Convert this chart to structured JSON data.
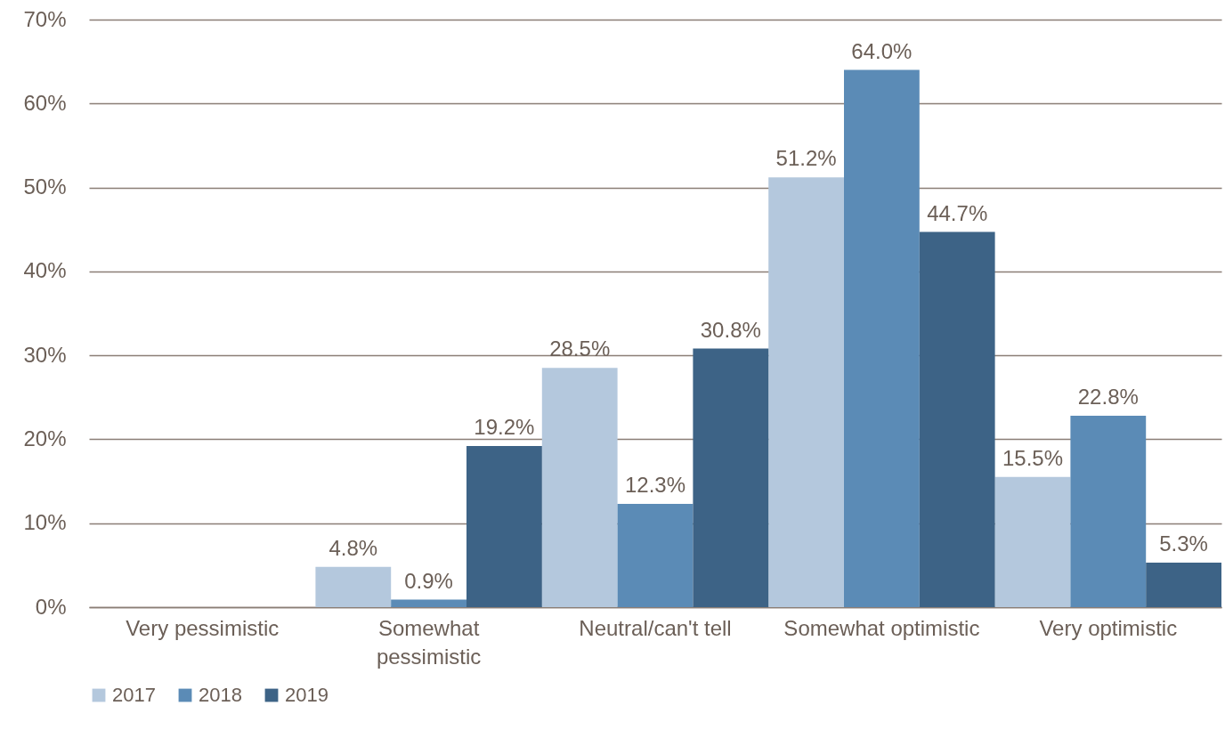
{
  "chart_data": {
    "type": "bar",
    "categories": [
      "Very pessimistic",
      "Somewhat pessimistic",
      "Neutral/can't tell",
      "Somewhat optimistic",
      "Very optimistic"
    ],
    "series": [
      {
        "name": "2017",
        "color": "#b4c8dd",
        "values": [
          null,
          4.8,
          28.5,
          51.2,
          15.5
        ],
        "value_labels": [
          null,
          "4.8%",
          "28.5%",
          "51.2%",
          "15.5%"
        ]
      },
      {
        "name": "2018",
        "color": "#5b8bb6",
        "values": [
          null,
          0.9,
          12.3,
          64.0,
          22.8
        ],
        "value_labels": [
          null,
          "0.9%",
          "12.3%",
          "64.0%",
          "22.8%"
        ]
      },
      {
        "name": "2019",
        "color": "#3d6386",
        "values": [
          null,
          19.2,
          30.8,
          44.7,
          5.3
        ],
        "value_labels": [
          null,
          "19.2%",
          "30.8%",
          "44.7%",
          "5.3%"
        ]
      }
    ],
    "ylim": [
      0,
      70
    ],
    "yticks": [
      {
        "value": 0,
        "label": "0%"
      },
      {
        "value": 10,
        "label": "10%"
      },
      {
        "value": 20,
        "label": "20%"
      },
      {
        "value": 30,
        "label": "30%"
      },
      {
        "value": 40,
        "label": "40%"
      },
      {
        "value": 50,
        "label": "50%"
      },
      {
        "value": 60,
        "label": "60%"
      },
      {
        "value": 70,
        "label": "70%"
      }
    ],
    "grid": "y",
    "legend": "bottom"
  }
}
